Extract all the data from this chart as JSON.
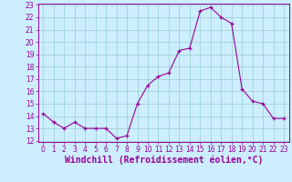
{
  "x": [
    0,
    1,
    2,
    3,
    4,
    5,
    6,
    7,
    8,
    9,
    10,
    11,
    12,
    13,
    14,
    15,
    16,
    17,
    18,
    19,
    20,
    21,
    22,
    23
  ],
  "y": [
    14.2,
    13.5,
    13.0,
    13.5,
    13.0,
    13.0,
    13.0,
    12.2,
    12.4,
    15.0,
    16.5,
    17.2,
    17.5,
    19.3,
    19.5,
    22.5,
    22.8,
    22.0,
    21.5,
    16.2,
    15.2,
    15.0,
    13.8,
    13.8
  ],
  "line_color": "#990099",
  "marker": "+",
  "marker_color": "#990099",
  "bg_color": "#cceeff",
  "grid_color": "#99cccc",
  "xlabel": "Windchill (Refroidissement éolien,°C)",
  "xlabel_color": "#990099",
  "tick_color": "#990099",
  "spine_color": "#990099",
  "ylim": [
    12,
    23
  ],
  "xlim": [
    -0.5,
    23.5
  ],
  "yticks": [
    12,
    13,
    14,
    15,
    16,
    17,
    18,
    19,
    20,
    21,
    22,
    23
  ],
  "xticks": [
    0,
    1,
    2,
    3,
    4,
    5,
    6,
    7,
    8,
    9,
    10,
    11,
    12,
    13,
    14,
    15,
    16,
    17,
    18,
    19,
    20,
    21,
    22,
    23
  ],
  "tick_fontsize": 5.5,
  "xlabel_fontsize": 7.0,
  "linewidth": 0.8,
  "markersize": 3.5,
  "markeredgewidth": 0.9
}
